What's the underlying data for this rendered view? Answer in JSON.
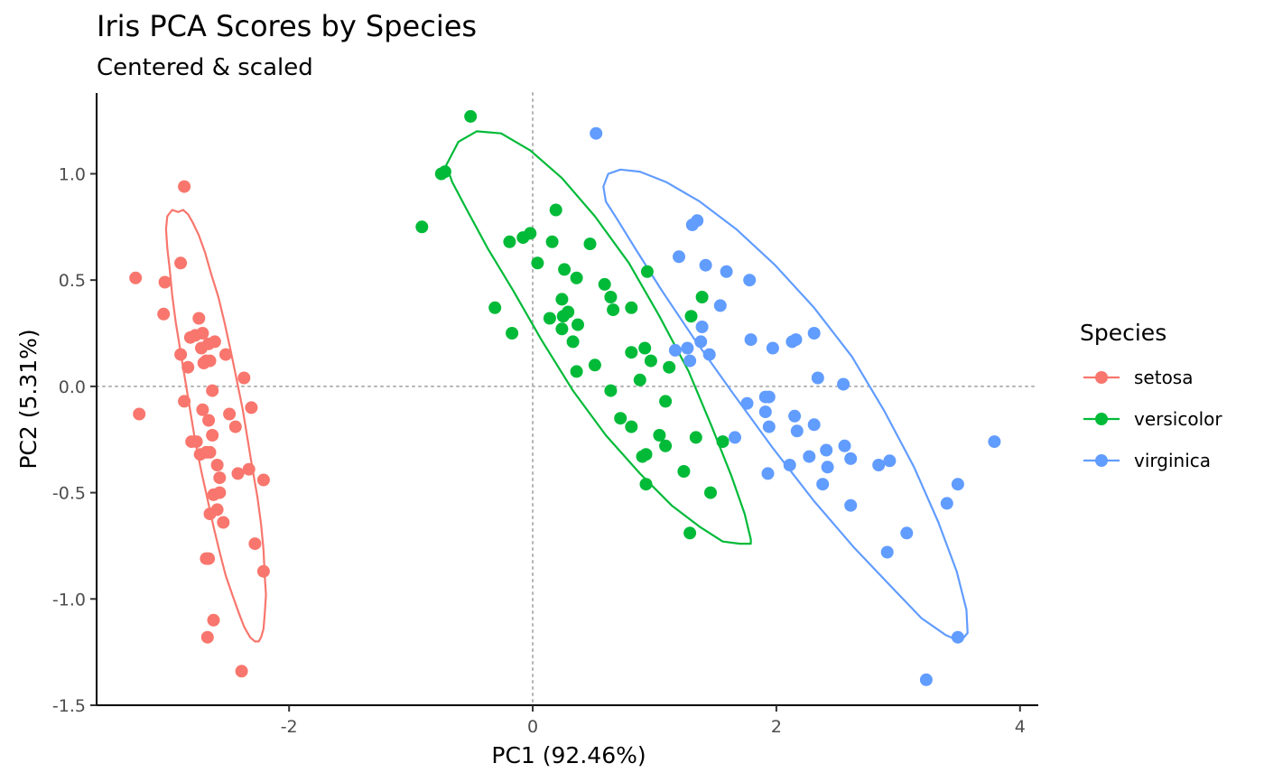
{
  "chart_data": {
    "type": "scatter",
    "title": "Iris PCA Scores by Species",
    "subtitle": "Centered & scaled",
    "xlabel": "PC1 (92.46%)",
    "ylabel": "PC2 (5.31%)",
    "xlim": [
      -3.58,
      4.15
    ],
    "ylim": [
      -1.5,
      1.38
    ],
    "x_ticks": [
      -2,
      0,
      2,
      4
    ],
    "x_tick_labels": [
      "-2",
      "0",
      "2",
      "4"
    ],
    "y_ticks": [
      -1.5,
      -1.0,
      -0.5,
      0.0,
      0.5,
      1.0
    ],
    "y_tick_labels": [
      "-1.5",
      "-1.0",
      "-0.5",
      "0.0",
      "0.5",
      "1.0"
    ],
    "grid": false,
    "reference_lines": {
      "x": 0,
      "y": 0,
      "style": "dotted"
    },
    "legend": {
      "title": "Species",
      "position": "right"
    },
    "series": [
      {
        "name": "setosa",
        "color": "#F8766D",
        "points": [
          [
            -3.26,
            0.51
          ],
          [
            -3.23,
            -0.13
          ],
          [
            -3.02,
            0.49
          ],
          [
            -3.03,
            0.34
          ],
          [
            -2.86,
            0.94
          ],
          [
            -2.89,
            0.58
          ],
          [
            -2.81,
            0.23
          ],
          [
            -2.74,
            0.32
          ],
          [
            -2.77,
            0.24
          ],
          [
            -2.71,
            0.25
          ],
          [
            -2.89,
            0.15
          ],
          [
            -2.72,
            0.18
          ],
          [
            -2.83,
            0.09
          ],
          [
            -2.66,
            0.2
          ],
          [
            -2.61,
            0.21
          ],
          [
            -2.68,
            0.12
          ],
          [
            -2.65,
            0.12
          ],
          [
            -2.7,
            0.11
          ],
          [
            -2.52,
            0.15
          ],
          [
            -2.37,
            0.04
          ],
          [
            -2.86,
            -0.07
          ],
          [
            -2.63,
            -0.02
          ],
          [
            -2.71,
            -0.11
          ],
          [
            -2.66,
            -0.16
          ],
          [
            -2.49,
            -0.13
          ],
          [
            -2.44,
            -0.19
          ],
          [
            -2.31,
            -0.1
          ],
          [
            -2.63,
            -0.23
          ],
          [
            -2.8,
            -0.26
          ],
          [
            -2.76,
            -0.26
          ],
          [
            -2.73,
            -0.32
          ],
          [
            -2.68,
            -0.31
          ],
          [
            -2.65,
            -0.31
          ],
          [
            -2.59,
            -0.37
          ],
          [
            -2.42,
            -0.41
          ],
          [
            -2.33,
            -0.39
          ],
          [
            -2.21,
            -0.44
          ],
          [
            -2.57,
            -0.43
          ],
          [
            -2.57,
            -0.5
          ],
          [
            -2.62,
            -0.51
          ],
          [
            -2.59,
            -0.58
          ],
          [
            -2.65,
            -0.6
          ],
          [
            -2.54,
            -0.64
          ],
          [
            -2.28,
            -0.74
          ],
          [
            -2.21,
            -0.87
          ],
          [
            -2.68,
            -0.81
          ],
          [
            -2.66,
            -0.81
          ],
          [
            -2.62,
            -1.1
          ],
          [
            -2.67,
            -1.18
          ],
          [
            -2.39,
            -1.34
          ]
        ],
        "ellipse": [
          [
            -2.91,
            0.82
          ],
          [
            -2.87,
            0.83
          ],
          [
            -2.83,
            0.81
          ],
          [
            -2.79,
            0.77
          ],
          [
            -2.74,
            0.71
          ],
          [
            -2.69,
            0.63
          ],
          [
            -2.64,
            0.53
          ],
          [
            -2.58,
            0.42
          ],
          [
            -2.53,
            0.3
          ],
          [
            -2.48,
            0.17
          ],
          [
            -2.43,
            0.03
          ],
          [
            -2.38,
            -0.11
          ],
          [
            -2.34,
            -0.25
          ],
          [
            -2.3,
            -0.39
          ],
          [
            -2.26,
            -0.52
          ],
          [
            -2.23,
            -0.65
          ],
          [
            -2.21,
            -0.77
          ],
          [
            -2.2,
            -0.89
          ],
          [
            -2.19,
            -0.98
          ],
          [
            -2.2,
            -1.07
          ],
          [
            -2.21,
            -1.14
          ],
          [
            -2.23,
            -1.18
          ],
          [
            -2.25,
            -1.2
          ],
          [
            -2.28,
            -1.2
          ],
          [
            -2.32,
            -1.18
          ],
          [
            -2.37,
            -1.13
          ],
          [
            -2.41,
            -1.07
          ],
          [
            -2.46,
            -0.99
          ],
          [
            -2.52,
            -0.89
          ],
          [
            -2.57,
            -0.78
          ],
          [
            -2.62,
            -0.66
          ],
          [
            -2.67,
            -0.53
          ],
          [
            -2.72,
            -0.4
          ],
          [
            -2.77,
            -0.26
          ],
          [
            -2.81,
            -0.12
          ],
          [
            -2.85,
            0.02
          ],
          [
            -2.89,
            0.16
          ],
          [
            -2.93,
            0.3
          ],
          [
            -2.96,
            0.43
          ],
          [
            -2.98,
            0.55
          ],
          [
            -3.0,
            0.65
          ],
          [
            -3.01,
            0.74
          ],
          [
            -3.0,
            0.8
          ],
          [
            -2.96,
            0.83
          ],
          [
            -2.91,
            0.82
          ]
        ]
      },
      {
        "name": "versicolor",
        "color": "#00BA38",
        "points": [
          [
            -0.51,
            1.27
          ],
          [
            -0.72,
            1.01
          ],
          [
            -0.75,
            1.0
          ],
          [
            -0.91,
            0.75
          ],
          [
            0.19,
            0.83
          ],
          [
            -0.02,
            0.72
          ],
          [
            -0.08,
            0.7
          ],
          [
            -0.19,
            0.68
          ],
          [
            0.16,
            0.68
          ],
          [
            0.47,
            0.67
          ],
          [
            0.04,
            0.58
          ],
          [
            0.26,
            0.55
          ],
          [
            0.36,
            0.51
          ],
          [
            0.59,
            0.48
          ],
          [
            0.94,
            0.54
          ],
          [
            0.64,
            0.42
          ],
          [
            1.39,
            0.42
          ],
          [
            0.24,
            0.41
          ],
          [
            -0.31,
            0.37
          ],
          [
            0.29,
            0.35
          ],
          [
            0.25,
            0.33
          ],
          [
            0.14,
            0.32
          ],
          [
            0.66,
            0.36
          ],
          [
            0.81,
            0.37
          ],
          [
            1.3,
            0.33
          ],
          [
            0.37,
            0.29
          ],
          [
            0.24,
            0.27
          ],
          [
            -0.17,
            0.25
          ],
          [
            0.33,
            0.21
          ],
          [
            0.81,
            0.16
          ],
          [
            0.92,
            0.18
          ],
          [
            0.97,
            0.12
          ],
          [
            1.12,
            0.09
          ],
          [
            0.51,
            0.1
          ],
          [
            0.36,
            0.07
          ],
          [
            0.88,
            0.03
          ],
          [
            0.64,
            -0.02
          ],
          [
            1.09,
            -0.07
          ],
          [
            0.72,
            -0.15
          ],
          [
            0.81,
            -0.19
          ],
          [
            1.04,
            -0.23
          ],
          [
            1.34,
            -0.24
          ],
          [
            1.56,
            -0.26
          ],
          [
            1.09,
            -0.28
          ],
          [
            0.93,
            -0.32
          ],
          [
            0.9,
            -0.33
          ],
          [
            1.24,
            -0.4
          ],
          [
            0.93,
            -0.46
          ],
          [
            1.46,
            -0.5
          ],
          [
            1.29,
            -0.69
          ]
        ],
        "ellipse": [
          [
            -0.71,
            1.04
          ],
          [
            -0.61,
            1.15
          ],
          [
            -0.46,
            1.2
          ],
          [
            -0.26,
            1.19
          ],
          [
            -0.02,
            1.11
          ],
          [
            0.24,
            0.98
          ],
          [
            0.51,
            0.8
          ],
          [
            0.79,
            0.58
          ],
          [
            1.04,
            0.33
          ],
          [
            1.28,
            0.07
          ],
          [
            1.47,
            -0.19
          ],
          [
            1.63,
            -0.42
          ],
          [
            1.74,
            -0.6
          ],
          [
            1.79,
            -0.72
          ],
          [
            1.79,
            -0.74
          ],
          [
            1.7,
            -0.74
          ],
          [
            1.56,
            -0.73
          ],
          [
            1.37,
            -0.66
          ],
          [
            1.14,
            -0.56
          ],
          [
            0.88,
            -0.41
          ],
          [
            0.6,
            -0.23
          ],
          [
            0.33,
            -0.02
          ],
          [
            0.07,
            0.22
          ],
          [
            -0.16,
            0.45
          ],
          [
            -0.37,
            0.65
          ],
          [
            -0.54,
            0.83
          ],
          [
            -0.66,
            0.96
          ],
          [
            -0.71,
            1.04
          ]
        ]
      },
      {
        "name": "virginica",
        "color": "#619CFF",
        "points": [
          [
            0.52,
            1.19
          ],
          [
            1.35,
            0.78
          ],
          [
            1.31,
            0.76
          ],
          [
            1.2,
            0.61
          ],
          [
            1.42,
            0.57
          ],
          [
            1.59,
            0.54
          ],
          [
            1.78,
            0.5
          ],
          [
            1.54,
            0.38
          ],
          [
            1.39,
            0.28
          ],
          [
            1.79,
            0.22
          ],
          [
            2.31,
            0.25
          ],
          [
            2.13,
            0.21
          ],
          [
            2.16,
            0.22
          ],
          [
            1.97,
            0.18
          ],
          [
            1.38,
            0.21
          ],
          [
            1.27,
            0.18
          ],
          [
            1.17,
            0.17
          ],
          [
            1.45,
            0.15
          ],
          [
            1.29,
            0.12
          ],
          [
            2.34,
            0.04
          ],
          [
            2.55,
            0.01
          ],
          [
            1.76,
            -0.08
          ],
          [
            1.94,
            -0.05
          ],
          [
            1.91,
            -0.05
          ],
          [
            1.91,
            -0.12
          ],
          [
            2.15,
            -0.14
          ],
          [
            1.94,
            -0.19
          ],
          [
            2.31,
            -0.18
          ],
          [
            2.17,
            -0.21
          ],
          [
            1.66,
            -0.24
          ],
          [
            2.27,
            -0.33
          ],
          [
            2.41,
            -0.3
          ],
          [
            2.56,
            -0.28
          ],
          [
            2.11,
            -0.37
          ],
          [
            2.42,
            -0.38
          ],
          [
            2.61,
            -0.34
          ],
          [
            2.84,
            -0.37
          ],
          [
            2.93,
            -0.35
          ],
          [
            1.93,
            -0.41
          ],
          [
            2.38,
            -0.46
          ],
          [
            3.79,
            -0.26
          ],
          [
            3.49,
            -0.46
          ],
          [
            3.4,
            -0.55
          ],
          [
            2.61,
            -0.56
          ],
          [
            3.07,
            -0.69
          ],
          [
            2.91,
            -0.78
          ],
          [
            3.49,
            -1.18
          ],
          [
            3.23,
            -1.38
          ]
        ],
        "ellipse": [
          [
            0.6,
            0.87
          ],
          [
            0.58,
            0.94
          ],
          [
            0.62,
            1.0
          ],
          [
            0.72,
            1.02
          ],
          [
            0.88,
            1.01
          ],
          [
            1.1,
            0.96
          ],
          [
            1.37,
            0.87
          ],
          [
            1.67,
            0.74
          ],
          [
            1.99,
            0.57
          ],
          [
            2.31,
            0.37
          ],
          [
            2.62,
            0.14
          ],
          [
            2.89,
            -0.12
          ],
          [
            3.13,
            -0.38
          ],
          [
            3.33,
            -0.64
          ],
          [
            3.48,
            -0.87
          ],
          [
            3.56,
            -1.05
          ],
          [
            3.57,
            -1.16
          ],
          [
            3.51,
            -1.2
          ],
          [
            3.39,
            -1.17
          ],
          [
            3.19,
            -1.09
          ],
          [
            2.94,
            -0.94
          ],
          [
            2.64,
            -0.76
          ],
          [
            2.31,
            -0.54
          ],
          [
            1.97,
            -0.29
          ],
          [
            1.64,
            -0.03
          ],
          [
            1.33,
            0.22
          ],
          [
            1.06,
            0.45
          ],
          [
            0.84,
            0.65
          ],
          [
            0.69,
            0.79
          ],
          [
            0.6,
            0.87
          ]
        ]
      }
    ]
  }
}
